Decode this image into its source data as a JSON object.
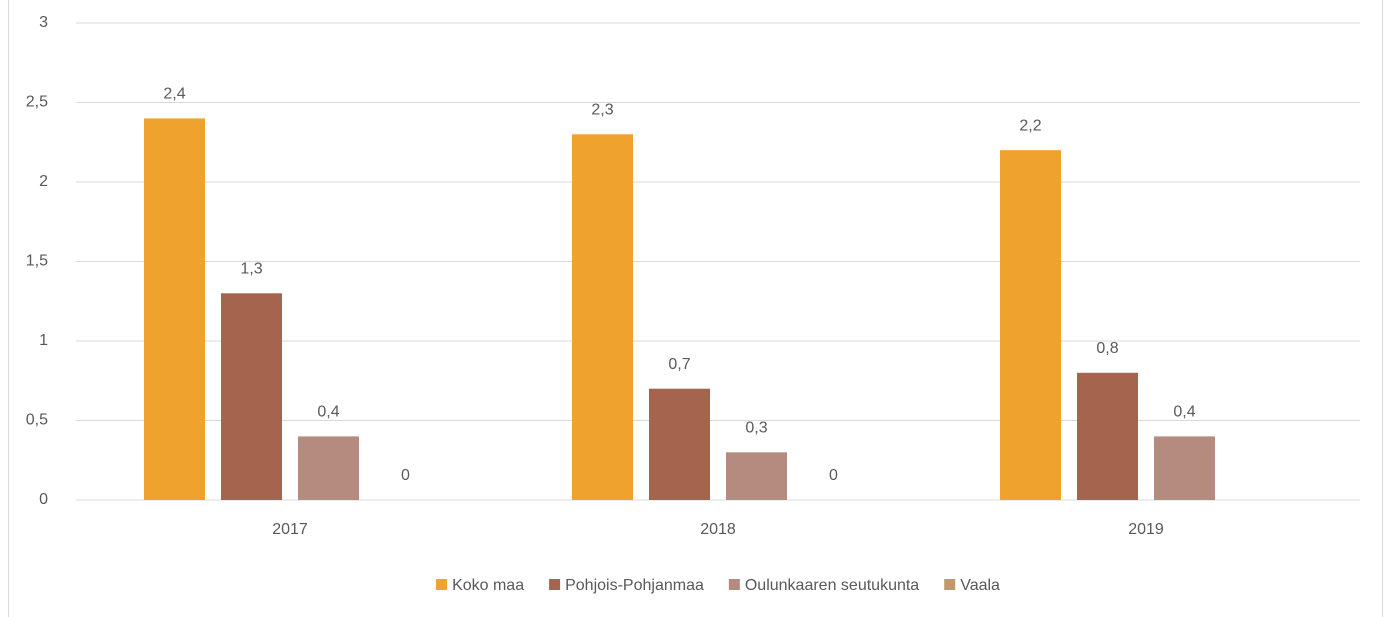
{
  "chart_data": {
    "type": "bar",
    "categories": [
      "2017",
      "2018",
      "2019"
    ],
    "series": [
      {
        "name": "Koko maa",
        "color": "#F0A22E",
        "values": [
          2.4,
          2.3,
          2.2
        ],
        "value_labels": [
          "2,4",
          "2,3",
          "2,2"
        ]
      },
      {
        "name": "Pohjois-Pohjanmaa",
        "color": "#A5644E",
        "values": [
          1.3,
          0.7,
          0.8
        ],
        "value_labels": [
          "1,3",
          "0,7",
          "0,8"
        ]
      },
      {
        "name": "Oulunkaaren seutukunta",
        "color": "#B58B80",
        "values": [
          0.4,
          0.3,
          0.4
        ],
        "value_labels": [
          "0,4",
          "0,3",
          "0,4"
        ]
      },
      {
        "name": "Vaala",
        "color": "#C3986D",
        "values": [
          0,
          0,
          null
        ],
        "value_labels": [
          "0",
          "0",
          null
        ]
      }
    ],
    "ylim": [
      0,
      3
    ],
    "yticks": [
      0,
      {
        "value": 0.5,
        "label": "0,5"
      },
      1,
      {
        "value": 1.5,
        "label": "1,5"
      },
      2,
      {
        "value": 2.5,
        "label": "2,5"
      },
      3
    ],
    "grid": true,
    "legend": "bottom"
  }
}
